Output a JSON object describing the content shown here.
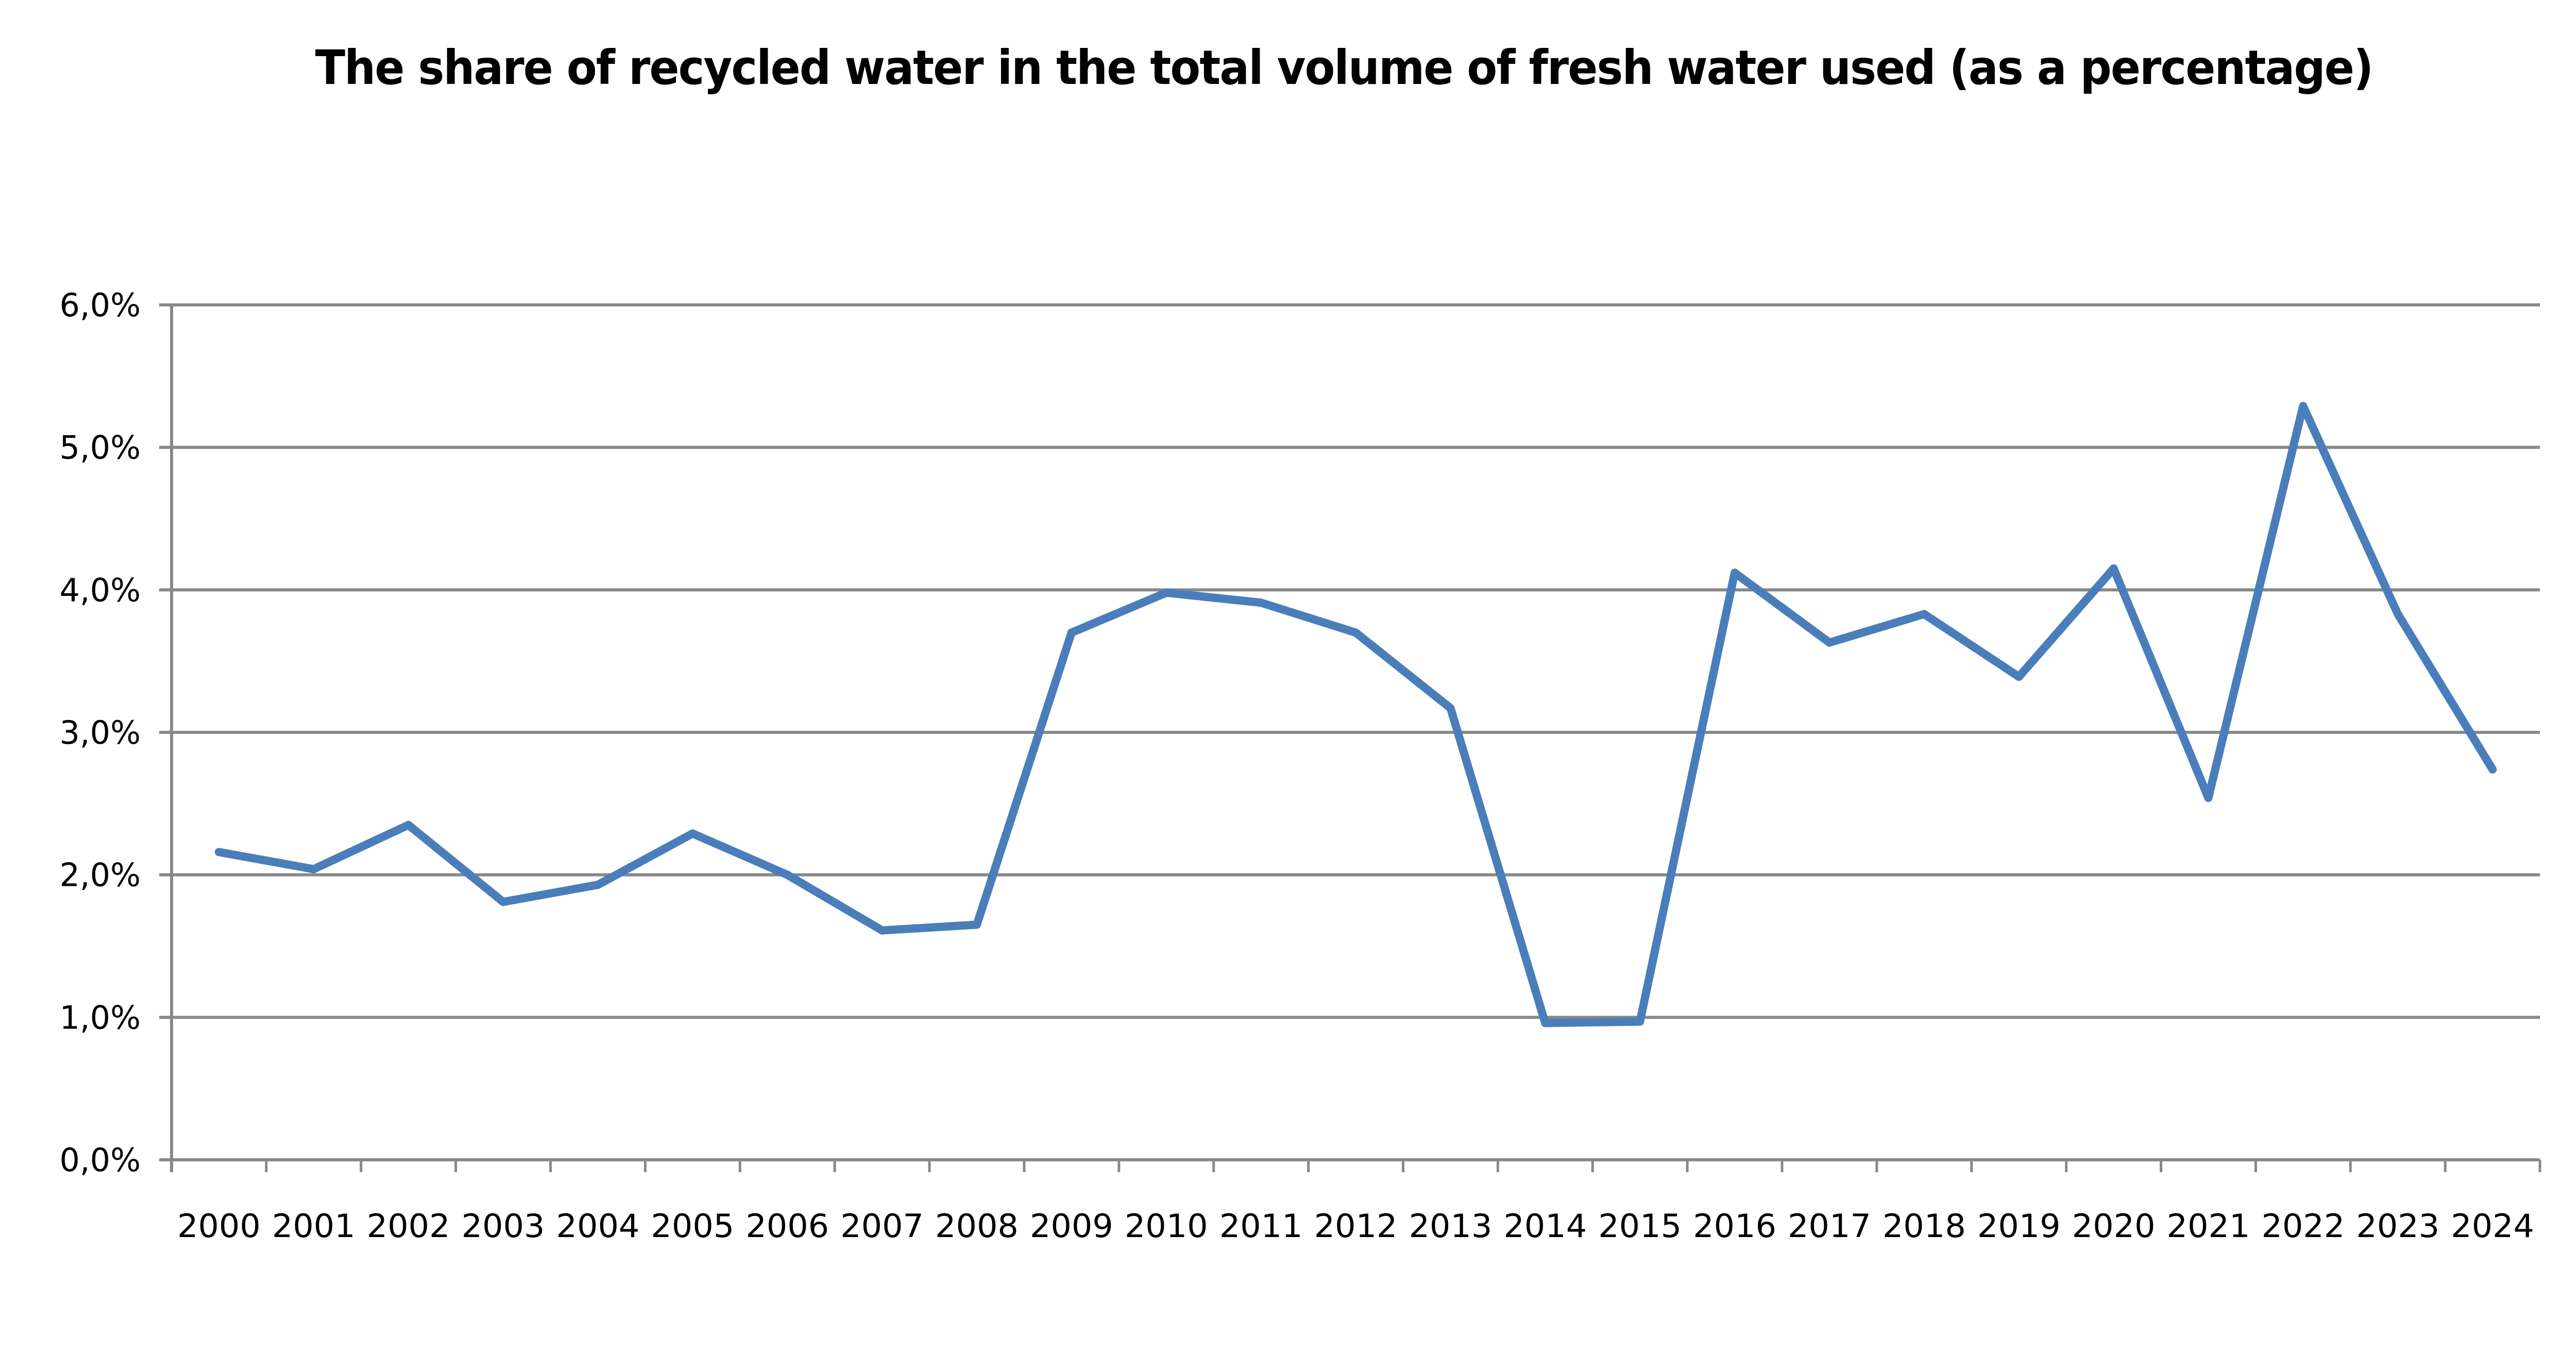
{
  "chart_data": {
    "type": "line",
    "title": "The share of recycled water in the total volume of fresh water used (as a percentage)",
    "xlabel": "",
    "ylabel": "",
    "categories": [
      "2000",
      "2001",
      "2002",
      "2003",
      "2004",
      "2005",
      "2006",
      "2007",
      "2008",
      "2009",
      "2010",
      "2011",
      "2012",
      "2013",
      "2014",
      "2015",
      "2016",
      "2017",
      "2018",
      "2019",
      "2020",
      "2021",
      "2022",
      "2023",
      "2024"
    ],
    "series": [
      {
        "name": "Share of recycled water",
        "color": "#4A7EBB",
        "values": [
          2.16,
          2.04,
          2.35,
          1.81,
          1.93,
          2.29,
          2.0,
          1.61,
          1.65,
          3.7,
          3.98,
          3.91,
          3.7,
          3.17,
          0.96,
          0.97,
          4.12,
          3.63,
          3.83,
          3.39,
          4.15,
          2.54,
          5.29,
          3.83,
          2.74
        ]
      }
    ],
    "ylim": [
      0,
      6
    ],
    "yticks": [
      0,
      1,
      2,
      3,
      4,
      5,
      6
    ],
    "ytick_labels": [
      "0,0%",
      "1,0%",
      "2,0%",
      "3,0%",
      "4,0%",
      "5,0%",
      "6,0%"
    ],
    "grid": true,
    "gridline_color": "#888888",
    "legend": "none"
  }
}
